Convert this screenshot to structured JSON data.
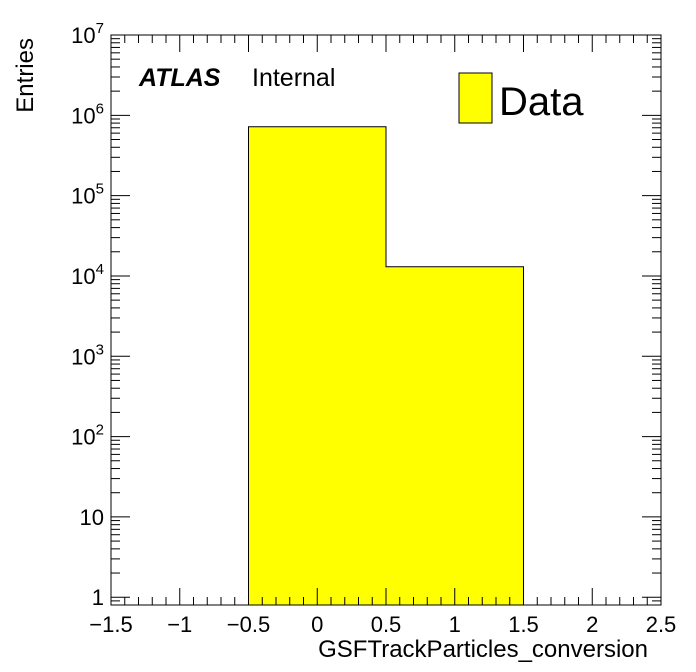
{
  "chart_data": {
    "type": "bar",
    "histogram": true,
    "log_y": true,
    "xlabel": "GSFTrackParticles_conversion",
    "ylabel": "Entries",
    "xlim": [
      -1.5,
      2.5
    ],
    "ylim": [
      0.8,
      10000000
    ],
    "grid": false,
    "bins": [
      {
        "low": -0.5,
        "high": 0.5,
        "value": 720000
      },
      {
        "low": 0.5,
        "high": 1.5,
        "value": 13000
      }
    ],
    "x_ticks": [
      "−1.5",
      "−1",
      "−0.5",
      "0",
      "0.5",
      "1",
      "1.5",
      "2",
      "2.5"
    ],
    "y_ticks": [
      "1",
      "10",
      "10^2",
      "10^3",
      "10^4",
      "10^5",
      "10^6",
      "10^7"
    ],
    "fill_color": "#ffff00",
    "legend": {
      "position": "top-right",
      "entries": [
        {
          "label": "Data",
          "color": "#ffff00"
        }
      ]
    },
    "annotations": {
      "atlas": "ATLAS",
      "status": "Internal"
    }
  }
}
